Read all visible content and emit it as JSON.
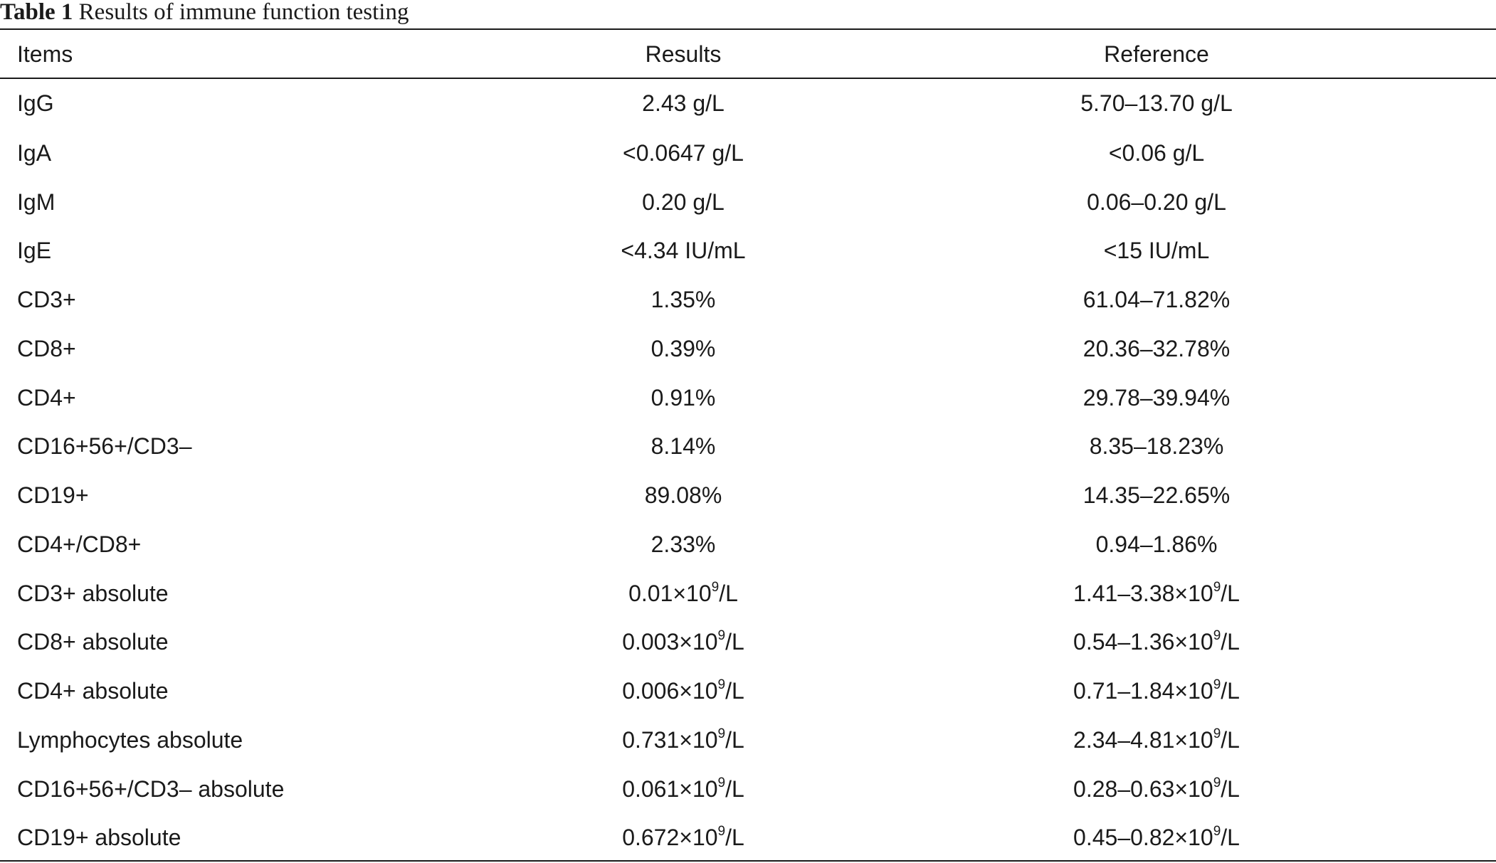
{
  "caption": {
    "label": "Table 1",
    "title": "Results of immune function testing"
  },
  "table": {
    "headers": {
      "items": "Items",
      "results": "Results",
      "reference": "Reference"
    },
    "rows": [
      {
        "item": "IgG",
        "result": "2.43 g/L",
        "reference": "5.70–13.70 g/L"
      },
      {
        "item": "IgA",
        "result": "<0.0647 g/L",
        "reference": "<0.06 g/L"
      },
      {
        "item": "IgM",
        "result": "0.20 g/L",
        "reference": "0.06–0.20 g/L"
      },
      {
        "item": "IgE",
        "result": "<4.34 IU/mL",
        "reference": "<15 IU/mL"
      },
      {
        "item": "CD3+",
        "result": "1.35%",
        "reference": "61.04–71.82%"
      },
      {
        "item": "CD8+",
        "result": "0.39%",
        "reference": "20.36–32.78%"
      },
      {
        "item": "CD4+",
        "result": "0.91%",
        "reference": "29.78–39.94%"
      },
      {
        "item": "CD16+56+/CD3–",
        "result": "8.14%",
        "reference": "8.35–18.23%"
      },
      {
        "item": "CD19+",
        "result": "89.08%",
        "reference": "14.35–22.65%"
      },
      {
        "item": "CD4+/CD8+",
        "result": "2.33%",
        "reference": "0.94–1.86%"
      },
      {
        "item": "CD3+ absolute",
        "result": {
          "pre": "0.01×10",
          "sup": "9",
          "post": "/L"
        },
        "reference": {
          "pre": "1.41–3.38×10",
          "sup": "9",
          "post": "/L"
        }
      },
      {
        "item": "CD8+ absolute",
        "result": {
          "pre": "0.003×10",
          "sup": "9",
          "post": "/L"
        },
        "reference": {
          "pre": "0.54–1.36×10",
          "sup": "9",
          "post": "/L"
        }
      },
      {
        "item": "CD4+ absolute",
        "result": {
          "pre": "0.006×10",
          "sup": "9",
          "post": "/L"
        },
        "reference": {
          "pre": "0.71–1.84×10",
          "sup": "9",
          "post": "/L"
        }
      },
      {
        "item": "Lymphocytes absolute",
        "result": {
          "pre": "0.731×10",
          "sup": "9",
          "post": "/L"
        },
        "reference": {
          "pre": "2.34–4.81×10",
          "sup": "9",
          "post": "/L"
        }
      },
      {
        "item": "CD16+56+/CD3– absolute",
        "result": {
          "pre": "0.061×10",
          "sup": "9",
          "post": "/L"
        },
        "reference": {
          "pre": "0.28–0.63×10",
          "sup": "9",
          "post": "/L"
        }
      },
      {
        "item": "CD19+ absolute",
        "result": {
          "pre": "0.672×10",
          "sup": "9",
          "post": "/L"
        },
        "reference": {
          "pre": "0.45–0.82×10",
          "sup": "9",
          "post": "/L"
        }
      }
    ]
  }
}
